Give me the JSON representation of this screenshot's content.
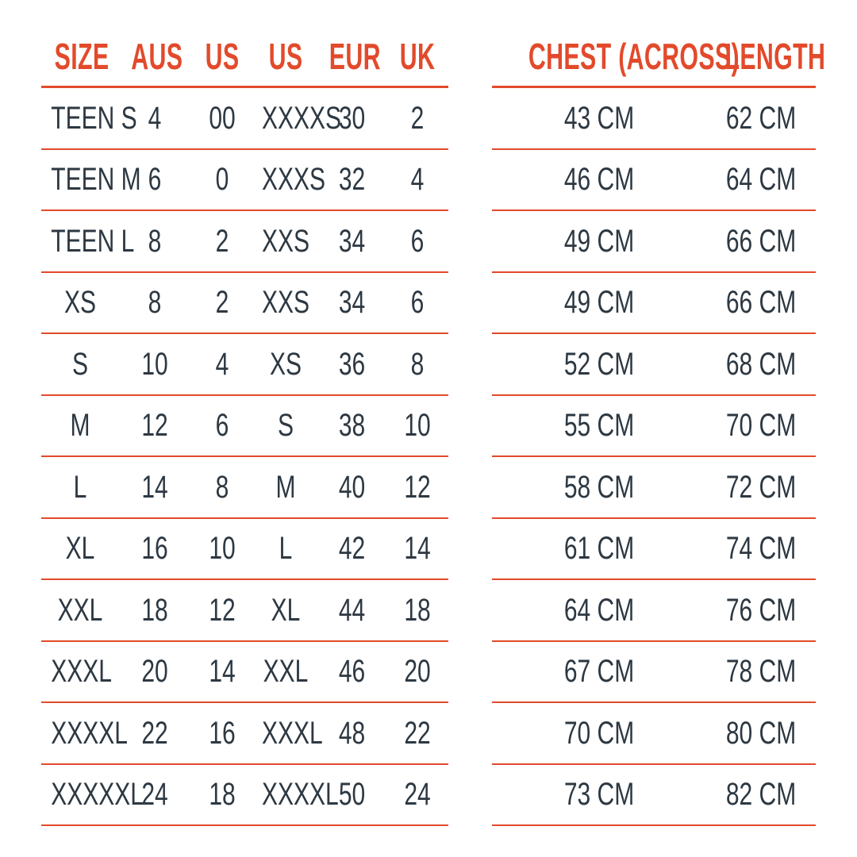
{
  "colors": {
    "accent": "#E24A2B",
    "text": "#2D3842",
    "background": "#FFFFFF"
  },
  "left_table": {
    "headers": {
      "size": "SIZE",
      "aus": "AUS",
      "us": "US",
      "us2": "US",
      "eur": "EUR",
      "uk": "UK"
    },
    "rows": [
      {
        "size": "TEEN S",
        "aus": "4",
        "us": "00",
        "us2": "XXXXS",
        "eur": "30",
        "uk": "2"
      },
      {
        "size": "TEEN M",
        "aus": "6",
        "us": "0",
        "us2": "XXXS",
        "eur": "32",
        "uk": "4"
      },
      {
        "size": "TEEN L",
        "aus": "8",
        "us": "2",
        "us2": "XXS",
        "eur": "34",
        "uk": "6"
      },
      {
        "size": "XS",
        "aus": "8",
        "us": "2",
        "us2": "XXS",
        "eur": "34",
        "uk": "6"
      },
      {
        "size": "S",
        "aus": "10",
        "us": "4",
        "us2": "XS",
        "eur": "36",
        "uk": "8"
      },
      {
        "size": "M",
        "aus": "12",
        "us": "6",
        "us2": "S",
        "eur": "38",
        "uk": "10"
      },
      {
        "size": "L",
        "aus": "14",
        "us": "8",
        "us2": "M",
        "eur": "40",
        "uk": "12"
      },
      {
        "size": "XL",
        "aus": "16",
        "us": "10",
        "us2": "L",
        "eur": "42",
        "uk": "14"
      },
      {
        "size": "XXL",
        "aus": "18",
        "us": "12",
        "us2": "XL",
        "eur": "44",
        "uk": "18"
      },
      {
        "size": "XXXL",
        "aus": "20",
        "us": "14",
        "us2": "XXL",
        "eur": "46",
        "uk": "20"
      },
      {
        "size": "XXXXL",
        "aus": "22",
        "us": "16",
        "us2": "XXXL",
        "eur": "48",
        "uk": "22"
      },
      {
        "size": "XXXXXL",
        "aus": "24",
        "us": "18",
        "us2": "XXXXL",
        "eur": "50",
        "uk": "24"
      }
    ]
  },
  "right_table": {
    "headers": {
      "chest": "CHEST (ACROSS)",
      "length": "LENGTH"
    },
    "rows": [
      {
        "chest": "43 CM",
        "length": "62 CM"
      },
      {
        "chest": "46 CM",
        "length": "64 CM"
      },
      {
        "chest": "49 CM",
        "length": "66 CM"
      },
      {
        "chest": "49 CM",
        "length": "66 CM"
      },
      {
        "chest": "52 CM",
        "length": "68 CM"
      },
      {
        "chest": "55 CM",
        "length": "70 CM"
      },
      {
        "chest": "58 CM",
        "length": "72 CM"
      },
      {
        "chest": "61 CM",
        "length": "74 CM"
      },
      {
        "chest": "64 CM",
        "length": "76 CM"
      },
      {
        "chest": "67 CM",
        "length": "78 CM"
      },
      {
        "chest": "70 CM",
        "length": "80 CM"
      },
      {
        "chest": "73 CM",
        "length": "82 CM"
      }
    ]
  }
}
